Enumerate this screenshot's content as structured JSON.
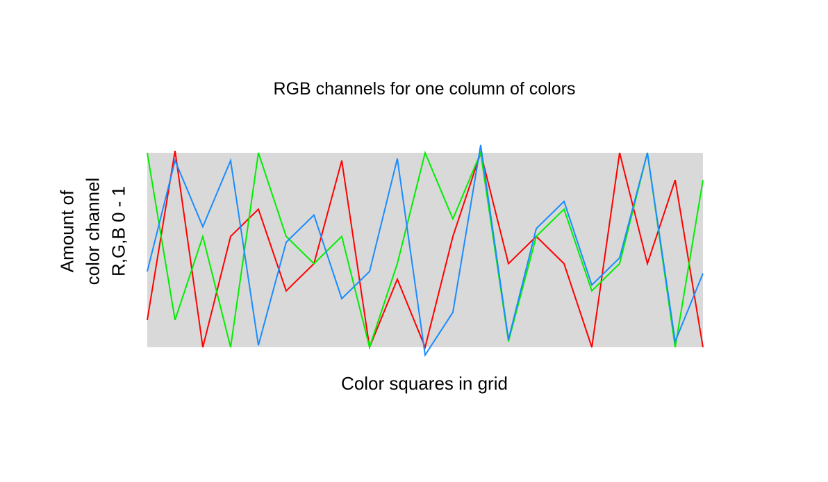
{
  "chart_data": {
    "type": "line",
    "title": "RGB channels for one column of colors",
    "xlabel": "Color squares in grid",
    "ylabel": [
      "Amount of",
      "color channel",
      "R,G,B 0 - 1"
    ],
    "x": [
      1,
      2,
      3,
      4,
      5,
      6,
      7,
      8,
      9,
      10,
      11,
      12,
      13,
      14,
      15,
      16,
      17,
      18,
      19,
      20,
      21
    ],
    "ylim": [
      0,
      1
    ],
    "grid": false,
    "legend": "none",
    "background_color": "#d9d9d9",
    "series": [
      {
        "color": "#ff0000",
        "values": [
          0.14,
          1.01,
          0.0,
          0.57,
          0.71,
          0.29,
          0.43,
          0.96,
          0.0,
          0.35,
          0.0,
          0.57,
          1.0,
          0.43,
          0.57,
          0.43,
          0.0,
          1.0,
          0.43,
          0.86,
          0.0
        ]
      },
      {
        "color": "#00ee00",
        "values": [
          1.0,
          0.14,
          0.57,
          0.0,
          1.0,
          0.57,
          0.43,
          0.57,
          0.0,
          0.43,
          1.0,
          0.66,
          1.0,
          0.03,
          0.57,
          0.71,
          0.29,
          0.43,
          1.0,
          0.0,
          0.86
        ]
      },
      {
        "color": "#1a8cff",
        "values": [
          0.39,
          0.96,
          0.62,
          0.96,
          0.01,
          0.54,
          0.68,
          0.25,
          0.39,
          0.97,
          -0.04,
          0.18,
          1.04,
          0.04,
          0.61,
          0.75,
          0.32,
          0.46,
          1.0,
          0.03,
          0.38
        ]
      }
    ]
  }
}
